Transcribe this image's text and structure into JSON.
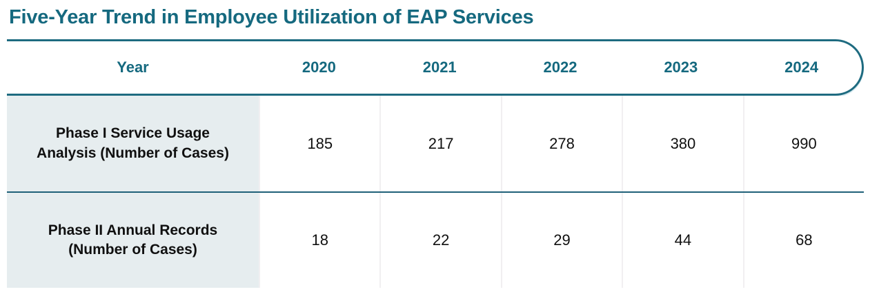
{
  "page": {
    "title": "Five-Year Trend in Employee Utilization of EAP Services"
  },
  "table": {
    "header": {
      "year_label": "Year",
      "years": [
        "2020",
        "2021",
        "2022",
        "2023",
        "2024"
      ]
    },
    "rows": [
      {
        "label": "Phase I Service Usage Analysis (Number of Cases)",
        "values": [
          "185",
          "217",
          "278",
          "380",
          "990"
        ]
      },
      {
        "label": "Phase II Annual Records (Number of Cases)",
        "values": [
          "18",
          "22",
          "29",
          "44",
          "68"
        ]
      }
    ]
  },
  "colors": {
    "accent_teal": "#15697f",
    "table_border_teal": "#1e6b80",
    "row_divider_teal": "#1f6078",
    "divider_highlight": "#cde6ee",
    "label_column_bg": "#e6edef",
    "column_divider": "#f1eff1",
    "body_text": "#101010",
    "background": "#ffffff"
  },
  "chart_data": {
    "type": "table",
    "title": "Five-Year Trend in Employee Utilization of EAP Services",
    "categories": [
      "2020",
      "2021",
      "2022",
      "2023",
      "2024"
    ],
    "xlabel": "Year",
    "series": [
      {
        "name": "Phase I Service Usage Analysis (Number of Cases)",
        "values": [
          185,
          217,
          278,
          380,
          990
        ]
      },
      {
        "name": "Phase II Annual Records (Number of Cases)",
        "values": [
          18,
          22,
          29,
          44,
          68
        ]
      }
    ]
  }
}
